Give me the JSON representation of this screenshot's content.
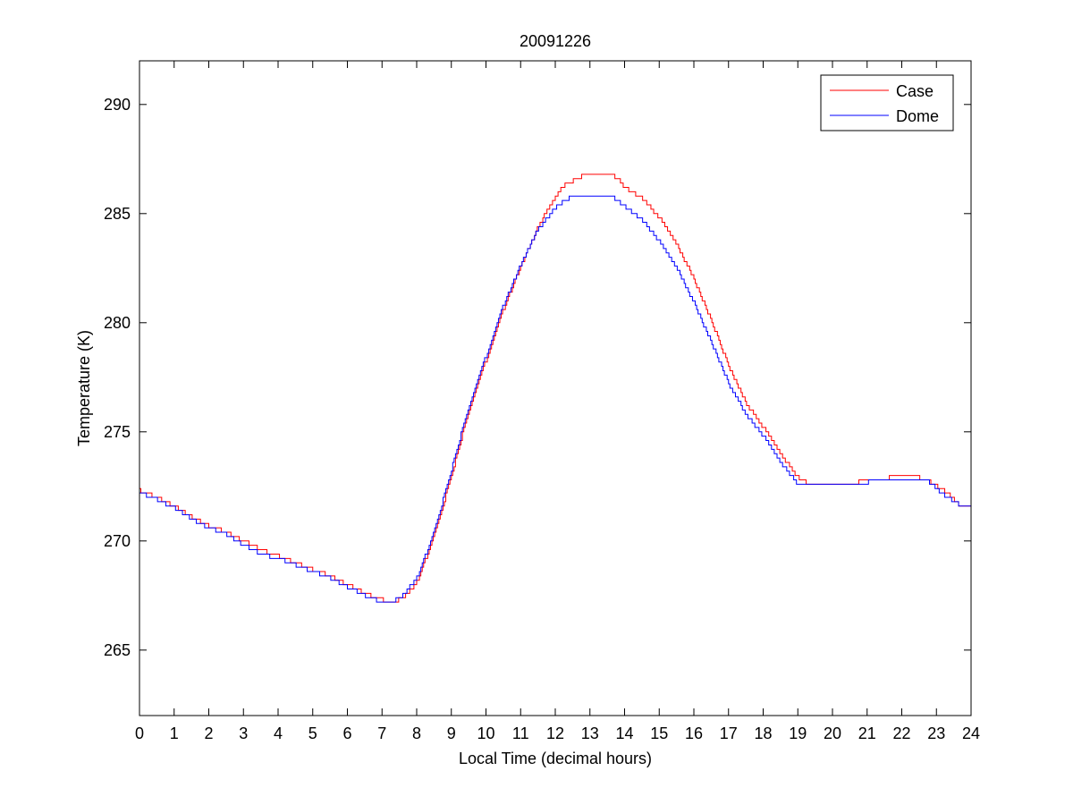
{
  "chart_data": {
    "type": "line",
    "title": "20091226",
    "xlabel": "Local Time (decimal hours)",
    "ylabel": "Temperature (K)",
    "xlim": [
      0,
      24
    ],
    "ylim": [
      262,
      292
    ],
    "xticks": [
      0,
      1,
      2,
      3,
      4,
      5,
      6,
      7,
      8,
      9,
      10,
      11,
      12,
      13,
      14,
      15,
      16,
      17,
      18,
      19,
      20,
      21,
      22,
      23,
      24
    ],
    "yticks": [
      265,
      270,
      275,
      280,
      285,
      290
    ],
    "grid": false,
    "legend_position": "top-right",
    "step": true,
    "series": [
      {
        "name": "Case",
        "color": "#ff0000",
        "x": [
          0,
          0.5,
          1,
          1.5,
          2,
          2.5,
          3,
          3.5,
          4,
          4.5,
          5,
          5.5,
          6,
          6.5,
          7,
          7.3,
          7.6,
          8,
          8.5,
          9,
          9.5,
          10,
          10.5,
          11,
          11.5,
          12,
          12.25,
          12.5,
          13,
          13.5,
          13.8,
          14,
          14.5,
          15,
          15.5,
          16,
          16.5,
          17,
          17.5,
          18,
          18.5,
          19,
          19.3,
          20,
          20.5,
          21,
          21.5,
          21.75,
          22.3,
          22.7,
          23,
          23.3,
          23.6,
          24
        ],
        "y": [
          272.3,
          272.0,
          271.6,
          271.1,
          270.7,
          270.4,
          270.0,
          269.6,
          269.3,
          269.0,
          268.7,
          268.4,
          268.0,
          267.6,
          267.3,
          267.2,
          267.4,
          268.1,
          270.2,
          273.0,
          276.0,
          278.3,
          280.6,
          282.6,
          284.4,
          285.8,
          286.3,
          286.5,
          286.9,
          286.9,
          286.6,
          286.2,
          285.7,
          284.8,
          283.6,
          282.0,
          280.1,
          278.0,
          276.3,
          275.2,
          274.0,
          272.9,
          272.6,
          272.6,
          272.6,
          272.8,
          272.8,
          273.0,
          273.0,
          272.8,
          272.5,
          272.2,
          271.7,
          271.7
        ]
      },
      {
        "name": "Dome",
        "color": "#0000ff",
        "x": [
          0,
          0.5,
          1,
          1.5,
          2,
          2.5,
          3,
          3.5,
          4,
          4.5,
          5,
          5.5,
          6,
          6.5,
          7,
          7.3,
          7.6,
          8,
          8.5,
          9,
          9.5,
          10,
          10.5,
          11,
          11.5,
          12,
          12.25,
          12.5,
          13,
          13.5,
          13.8,
          14,
          14.5,
          15,
          15.5,
          16,
          16.5,
          17,
          17.5,
          18,
          18.5,
          19,
          19.3,
          20,
          20.5,
          21,
          21.5,
          21.75,
          22.3,
          22.7,
          23,
          23.3,
          23.6,
          24
        ],
        "y": [
          272.2,
          271.9,
          271.5,
          271.0,
          270.6,
          270.3,
          269.8,
          269.4,
          269.2,
          268.9,
          268.6,
          268.3,
          267.9,
          267.5,
          267.2,
          267.2,
          267.5,
          268.3,
          270.4,
          273.3,
          276.2,
          278.5,
          280.8,
          282.7,
          284.3,
          285.3,
          285.6,
          285.8,
          285.9,
          285.9,
          285.6,
          285.3,
          284.7,
          283.7,
          282.5,
          280.9,
          279.1,
          277.2,
          275.8,
          274.8,
          273.6,
          272.6,
          272.5,
          272.5,
          272.5,
          272.7,
          272.8,
          272.8,
          272.8,
          272.8,
          272.4,
          272.0,
          271.7,
          271.7
        ]
      }
    ]
  }
}
